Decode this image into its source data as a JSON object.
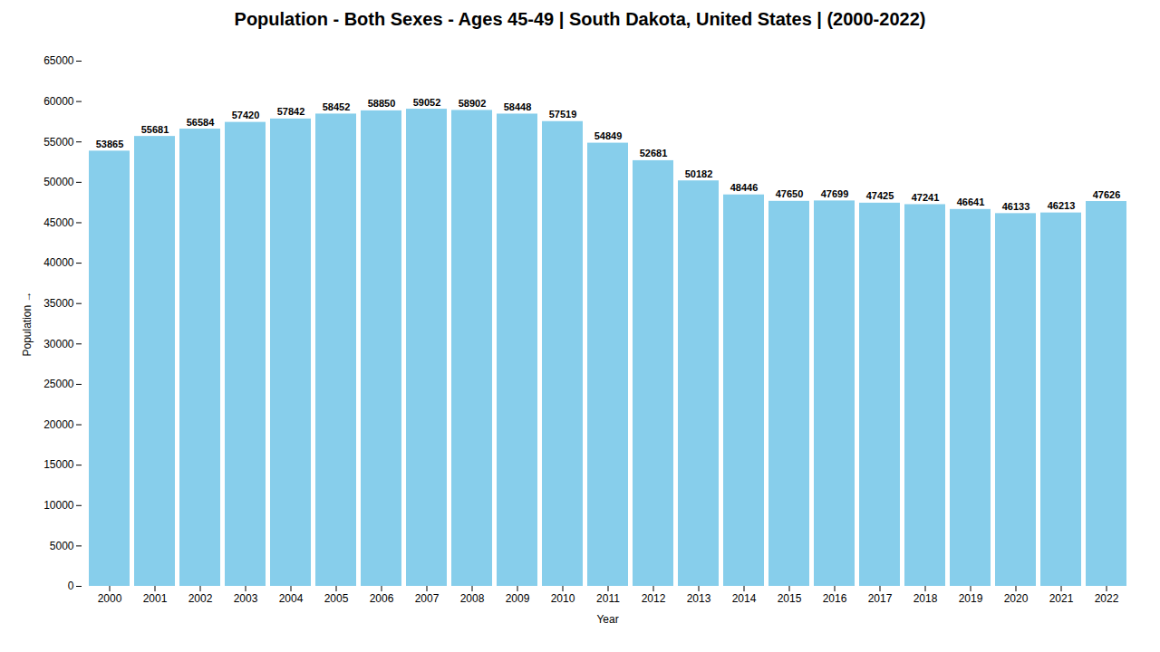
{
  "chart_data": {
    "type": "bar",
    "title": "Population - Both Sexes - Ages 45-49 | South Dakota, United States |  (2000-2022)",
    "xlabel": "Year",
    "ylabel": "Population",
    "categories": [
      "2000",
      "2001",
      "2002",
      "2003",
      "2004",
      "2005",
      "2006",
      "2007",
      "2008",
      "2009",
      "2010",
      "2011",
      "2012",
      "2013",
      "2014",
      "2015",
      "2016",
      "2017",
      "2018",
      "2019",
      "2020",
      "2021",
      "2022"
    ],
    "values": [
      53865,
      55681,
      56584,
      57420,
      57842,
      58452,
      58850,
      59052,
      58902,
      58448,
      57519,
      54849,
      52681,
      50182,
      48446,
      47650,
      47699,
      47425,
      47241,
      46641,
      46133,
      46213,
      47626
    ],
    "color": "#87CEEB",
    "ylim": [
      0,
      65000
    ],
    "yticks": [
      0,
      5000,
      10000,
      15000,
      20000,
      25000,
      30000,
      35000,
      40000,
      45000,
      50000,
      55000,
      60000,
      65000
    ],
    "grid": false,
    "data_labels": true
  }
}
